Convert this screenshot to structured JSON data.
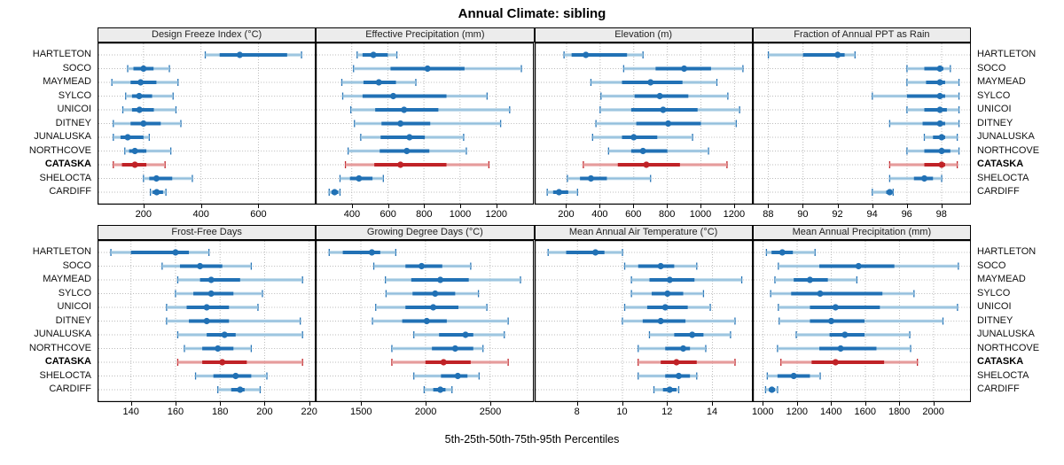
{
  "title": "Annual Climate: sibling",
  "caption": "5th-25th-50th-75th-95th Percentiles",
  "sites": [
    "HARTLETON",
    "SOCO",
    "MAYMEAD",
    "SYLCO",
    "UNICOI",
    "DITNEY",
    "JUNALUSKA",
    "NORTHCOVE",
    "CATASKA",
    "SHELOCTA",
    "CARDIFF"
  ],
  "highlight_site": "CATASKA",
  "percentile_labels": [
    "5th",
    "25th",
    "50th",
    "75th",
    "95th"
  ],
  "colors": {
    "series": "#2171b5",
    "series_light": "#a6cbe3",
    "highlight": "#c02227",
    "highlight_light": "#e9a3a3",
    "grid": "#bbbbbb",
    "panel_header_bg": "#ececec",
    "border": "#000000",
    "background": "#ffffff"
  },
  "chart_data": [
    {
      "type": "scatter",
      "subtype": "percentile-interval-dotplot",
      "row": "top",
      "title": "Design Freeze Index (°C)",
      "xlim": [
        40,
        800
      ],
      "xticks": [
        200,
        400,
        600
      ],
      "grid": "dotted",
      "legend": "none",
      "values": [
        [
          415,
          465,
          535,
          700,
          750
        ],
        [
          145,
          165,
          200,
          235,
          290
        ],
        [
          90,
          155,
          190,
          245,
          320
        ],
        [
          138,
          160,
          185,
          230,
          303
        ],
        [
          128,
          160,
          186,
          236,
          313
        ],
        [
          95,
          155,
          200,
          260,
          330
        ],
        [
          95,
          120,
          145,
          200,
          220
        ],
        [
          135,
          150,
          170,
          210,
          295
        ],
        [
          95,
          125,
          170,
          210,
          275
        ],
        [
          200,
          220,
          245,
          300,
          370
        ],
        [
          224,
          232,
          246,
          268,
          278
        ]
      ]
    },
    {
      "type": "scatter",
      "subtype": "percentile-interval-dotplot",
      "row": "top",
      "title": "Effective Precipitation (mm)",
      "xlim": [
        200,
        1410
      ],
      "xticks": [
        400,
        600,
        800,
        1000,
        1200
      ],
      "grid": "dotted",
      "legend": "none",
      "values": [
        [
          430,
          460,
          520,
          600,
          650
        ],
        [
          410,
          615,
          820,
          1025,
          1340
        ],
        [
          345,
          465,
          550,
          645,
          755
        ],
        [
          350,
          460,
          630,
          925,
          1150
        ],
        [
          395,
          530,
          690,
          880,
          1275
        ],
        [
          415,
          565,
          670,
          835,
          1225
        ],
        [
          450,
          560,
          720,
          805,
          1020
        ],
        [
          380,
          555,
          705,
          830,
          1035
        ],
        [
          365,
          525,
          670,
          925,
          1160
        ],
        [
          335,
          390,
          440,
          515,
          575
        ],
        [
          275,
          288,
          305,
          325,
          335
        ]
      ]
    },
    {
      "type": "scatter",
      "subtype": "percentile-interval-dotplot",
      "row": "top",
      "title": "Elevation (m)",
      "xlim": [
        10,
        1310
      ],
      "xticks": [
        200,
        400,
        600,
        800,
        1000,
        1200
      ],
      "grid": "dotted",
      "legend": "none",
      "values": [
        [
          185,
          230,
          315,
          560,
          655
        ],
        [
          540,
          730,
          900,
          1060,
          1250
        ],
        [
          345,
          530,
          700,
          890,
          1095
        ],
        [
          405,
          605,
          755,
          925,
          1160
        ],
        [
          400,
          585,
          775,
          980,
          1230
        ],
        [
          375,
          615,
          805,
          1000,
          1210
        ],
        [
          355,
          530,
          600,
          740,
          950
        ],
        [
          450,
          585,
          655,
          800,
          1045
        ],
        [
          300,
          505,
          675,
          875,
          1155
        ],
        [
          205,
          280,
          345,
          440,
          700
        ],
        [
          85,
          120,
          155,
          210,
          265
        ]
      ]
    },
    {
      "type": "scatter",
      "subtype": "percentile-interval-dotplot",
      "row": "top",
      "title": "Fraction of Annual PPT as Rain",
      "xlim": [
        87.1,
        99.7
      ],
      "xticks": [
        88,
        90,
        92,
        94,
        96,
        98
      ],
      "grid": "dotted",
      "legend": "none",
      "values": [
        [
          88,
          90,
          92,
          92.4,
          93
        ],
        [
          96,
          97,
          97.9,
          98.1,
          98.5
        ],
        [
          96,
          97.1,
          97.9,
          98.2,
          99
        ],
        [
          94,
          96,
          97.9,
          98.2,
          99
        ],
        [
          96,
          97,
          97.9,
          98.3,
          99
        ],
        [
          95,
          96.9,
          97.9,
          98.2,
          99
        ],
        [
          97,
          97.5,
          98,
          98.2,
          98.9
        ],
        [
          96,
          97,
          98,
          98.5,
          99
        ],
        [
          95,
          97,
          98,
          98.2,
          98.9
        ],
        [
          95,
          96.4,
          97,
          97.5,
          98
        ],
        [
          94,
          94.8,
          95,
          95.1,
          95.2
        ]
      ]
    },
    {
      "type": "scatter",
      "subtype": "percentile-interval-dotplot",
      "row": "bottom",
      "title": "Frost-Free Days",
      "xlim": [
        125,
        223
      ],
      "xticks": [
        140,
        160,
        180,
        200,
        220
      ],
      "grid": "dotted",
      "legend": "none",
      "values": [
        [
          131,
          140,
          160,
          166,
          175
        ],
        [
          154,
          162,
          171,
          181,
          194
        ],
        [
          161,
          171,
          176,
          189,
          217
        ],
        [
          160,
          168,
          176,
          186,
          199
        ],
        [
          156,
          165,
          174,
          184,
          197
        ],
        [
          156,
          166,
          174,
          184,
          216
        ],
        [
          161,
          174,
          182,
          187,
          217
        ],
        [
          164,
          172,
          179,
          186,
          194
        ],
        [
          161,
          172,
          181,
          192,
          217
        ],
        [
          169,
          177,
          187,
          194,
          201
        ],
        [
          179,
          185,
          189,
          191,
          198
        ]
      ]
    },
    {
      "type": "scatter",
      "subtype": "percentile-interval-dotplot",
      "row": "bottom",
      "title": "Growing Degree Days (°C)",
      "xlim": [
        1150,
        2840
      ],
      "xticks": [
        1500,
        2000,
        2500
      ],
      "grid": "dotted",
      "legend": "none",
      "values": [
        [
          1255,
          1360,
          1585,
          1650,
          1770
        ],
        [
          1600,
          1845,
          1970,
          2130,
          2350
        ],
        [
          1690,
          1890,
          2115,
          2335,
          2735
        ],
        [
          1695,
          1900,
          2075,
          2230,
          2410
        ],
        [
          1615,
          1845,
          2060,
          2255,
          2475
        ],
        [
          1590,
          1820,
          2010,
          2165,
          2640
        ],
        [
          1910,
          2105,
          2310,
          2370,
          2610
        ],
        [
          1740,
          2050,
          2230,
          2370,
          2445
        ],
        [
          1740,
          2000,
          2140,
          2350,
          2640
        ],
        [
          1910,
          2120,
          2250,
          2325,
          2415
        ],
        [
          1990,
          2060,
          2115,
          2155,
          2205
        ]
      ]
    },
    {
      "type": "scatter",
      "subtype": "percentile-interval-dotplot",
      "row": "bottom",
      "title": "Mean Annual Air Temperature (°C)",
      "xlim": [
        6.1,
        15.8
      ],
      "xticks": [
        8,
        10,
        12,
        14
      ],
      "grid": "dotted",
      "legend": "none",
      "values": [
        [
          6.7,
          7.5,
          8.8,
          9.2,
          10
        ],
        [
          10.1,
          10.7,
          11.7,
          12.3,
          13.3
        ],
        [
          10.4,
          11.2,
          12.1,
          13.2,
          15.3
        ],
        [
          10.4,
          11.3,
          12.0,
          12.7,
          13.6
        ],
        [
          10.1,
          11.1,
          11.9,
          12.9,
          13.9
        ],
        [
          10.0,
          10.9,
          11.7,
          12.8,
          15.0
        ],
        [
          11.2,
          12.3,
          13.1,
          13.6,
          14.8
        ],
        [
          10.7,
          11.9,
          12.7,
          13.0,
          13.7
        ],
        [
          10.7,
          11.7,
          12.4,
          13.3,
          15.0
        ],
        [
          10.7,
          11.9,
          12.5,
          13.0,
          13.3
        ],
        [
          11.4,
          11.8,
          12.1,
          12.4,
          12.5
        ]
      ]
    },
    {
      "type": "scatter",
      "subtype": "percentile-interval-dotplot",
      "row": "bottom",
      "title": "Mean Annual Precipitation (mm)",
      "xlim": [
        940,
        2220
      ],
      "xticks": [
        1000,
        1200,
        1400,
        1600,
        1800,
        2000
      ],
      "grid": "dotted",
      "legend": "none",
      "values": [
        [
          1020,
          1050,
          1113,
          1175,
          1305
        ],
        [
          1090,
          1330,
          1560,
          1770,
          2145
        ],
        [
          1070,
          1180,
          1275,
          1380,
          1550
        ],
        [
          1045,
          1165,
          1335,
          1700,
          1885
        ],
        [
          1090,
          1275,
          1425,
          1685,
          2140
        ],
        [
          1095,
          1275,
          1400,
          1595,
          2055
        ],
        [
          1195,
          1390,
          1480,
          1595,
          1860
        ],
        [
          1085,
          1330,
          1455,
          1665,
          1865
        ],
        [
          1105,
          1285,
          1425,
          1710,
          1905
        ],
        [
          1025,
          1085,
          1180,
          1275,
          1335
        ],
        [
          1015,
          1035,
          1052,
          1070,
          1085
        ]
      ]
    }
  ]
}
